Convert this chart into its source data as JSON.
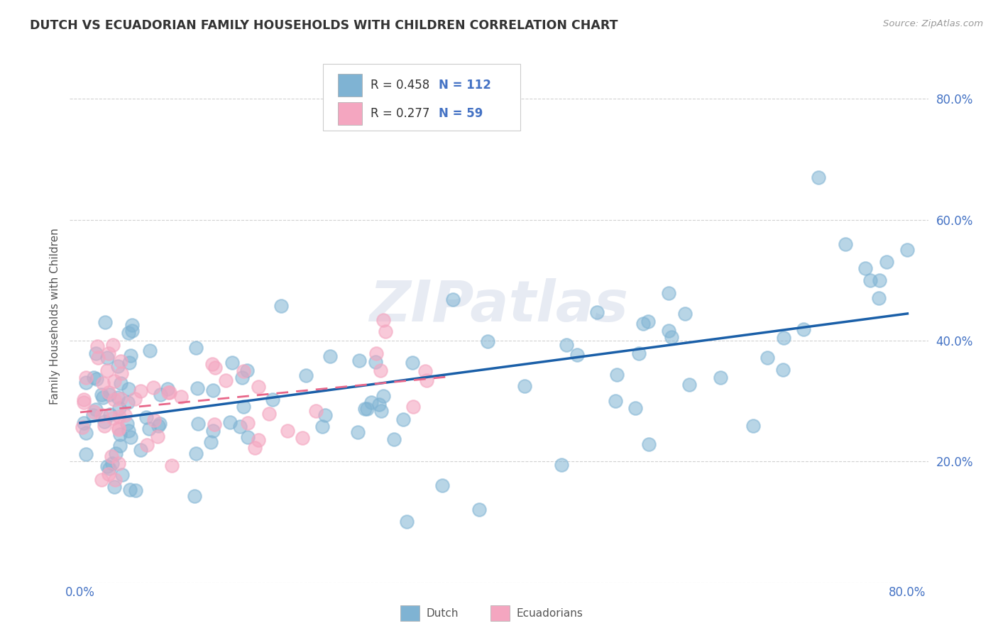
{
  "title": "DUTCH VS ECUADORIAN FAMILY HOUSEHOLDS WITH CHILDREN CORRELATION CHART",
  "source": "Source: ZipAtlas.com",
  "ylabel": "Family Households with Children",
  "dutch_color": "#7fb3d3",
  "ecuadorian_color": "#f4a6c0",
  "dutch_line_color": "#1a5fa8",
  "ecuadorian_line_color": "#e8678a",
  "watermark": "ZIPatlas",
  "legend_dutch_r": "0.458",
  "legend_dutch_n": "112",
  "legend_ecuadorian_r": "0.277",
  "legend_ecuadorian_n": "59",
  "background_color": "#ffffff",
  "grid_color": "#cccccc",
  "title_color": "#333333",
  "tick_color": "#4472c4",
  "ylabel_color": "#555555"
}
